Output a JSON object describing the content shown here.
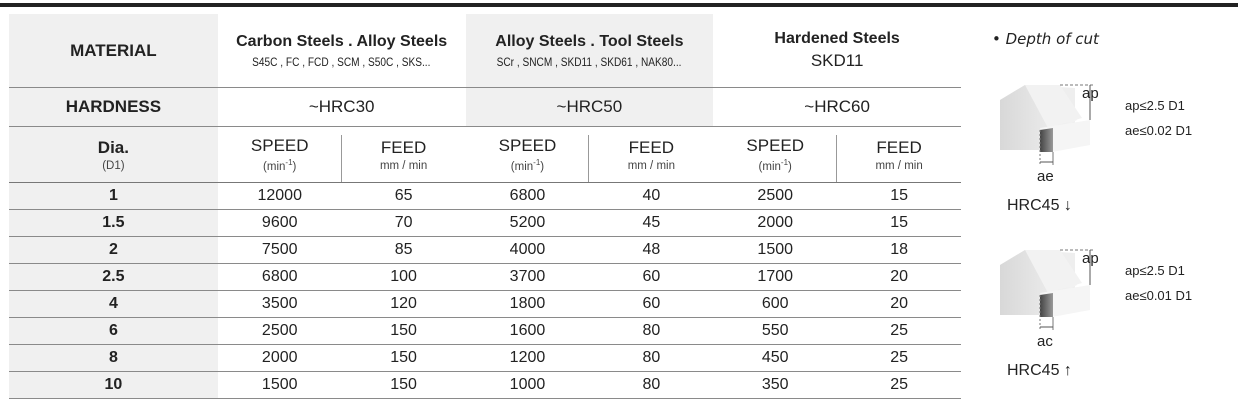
{
  "header": {
    "material_label": "MATERIAL",
    "hardness_label": "HARDNESS",
    "dia_label": "Dia.",
    "dia_sub": "(D1)",
    "speed_label": "SPEED",
    "speed_unit": "(min",
    "speed_unit_sup": "-1",
    "speed_unit_close": ")",
    "feed_label": "FEED",
    "feed_unit": "mm / min"
  },
  "groups": [
    {
      "title": "Carbon Steels . Alloy Steels",
      "sub": "S45C , FC , FCD , SCM , S50C , SKS...",
      "hardness": "~HRC30"
    },
    {
      "title": "Alloy  Steels . Tool Steels",
      "sub": "SCr , SNCM , SKD11 , SKD61 , NAK80...",
      "hardness": "~HRC50"
    },
    {
      "title": "Hardened Steels",
      "sub": "SKD11",
      "hardness": "~HRC60"
    }
  ],
  "rows": [
    {
      "dia": "1",
      "v": [
        "12000",
        "65",
        "6800",
        "40",
        "2500",
        "15"
      ]
    },
    {
      "dia": "1.5",
      "v": [
        "9600",
        "70",
        "5200",
        "45",
        "2000",
        "15"
      ]
    },
    {
      "dia": "2",
      "v": [
        "7500",
        "85",
        "4000",
        "48",
        "1500",
        "18"
      ]
    },
    {
      "dia": "2.5",
      "v": [
        "6800",
        "100",
        "3700",
        "60",
        "1700",
        "20"
      ]
    },
    {
      "dia": "4",
      "v": [
        "3500",
        "120",
        "1800",
        "60",
        "600",
        "20"
      ]
    },
    {
      "dia": "6",
      "v": [
        "2500",
        "150",
        "1600",
        "80",
        "550",
        "25"
      ]
    },
    {
      "dia": "8",
      "v": [
        "2000",
        "150",
        "1200",
        "80",
        "450",
        "25"
      ]
    },
    {
      "dia": "10",
      "v": [
        "1500",
        "150",
        "1000",
        "80",
        "350",
        "25"
      ]
    }
  ],
  "side": {
    "title": "• Depth of cut",
    "fig1": {
      "ap": "ap",
      "ae": "ae",
      "ap_rule": "ap≤2.5 D1",
      "ae_rule": "ae≤0.02 D1",
      "hrc": "HRC45 ↓"
    },
    "fig2": {
      "ap": "ap",
      "ae": "ac",
      "ap_rule": "ap≤2.5 D1",
      "ae_rule": "ae≤0.01 D1",
      "hrc": "HRC45 ↑"
    }
  }
}
